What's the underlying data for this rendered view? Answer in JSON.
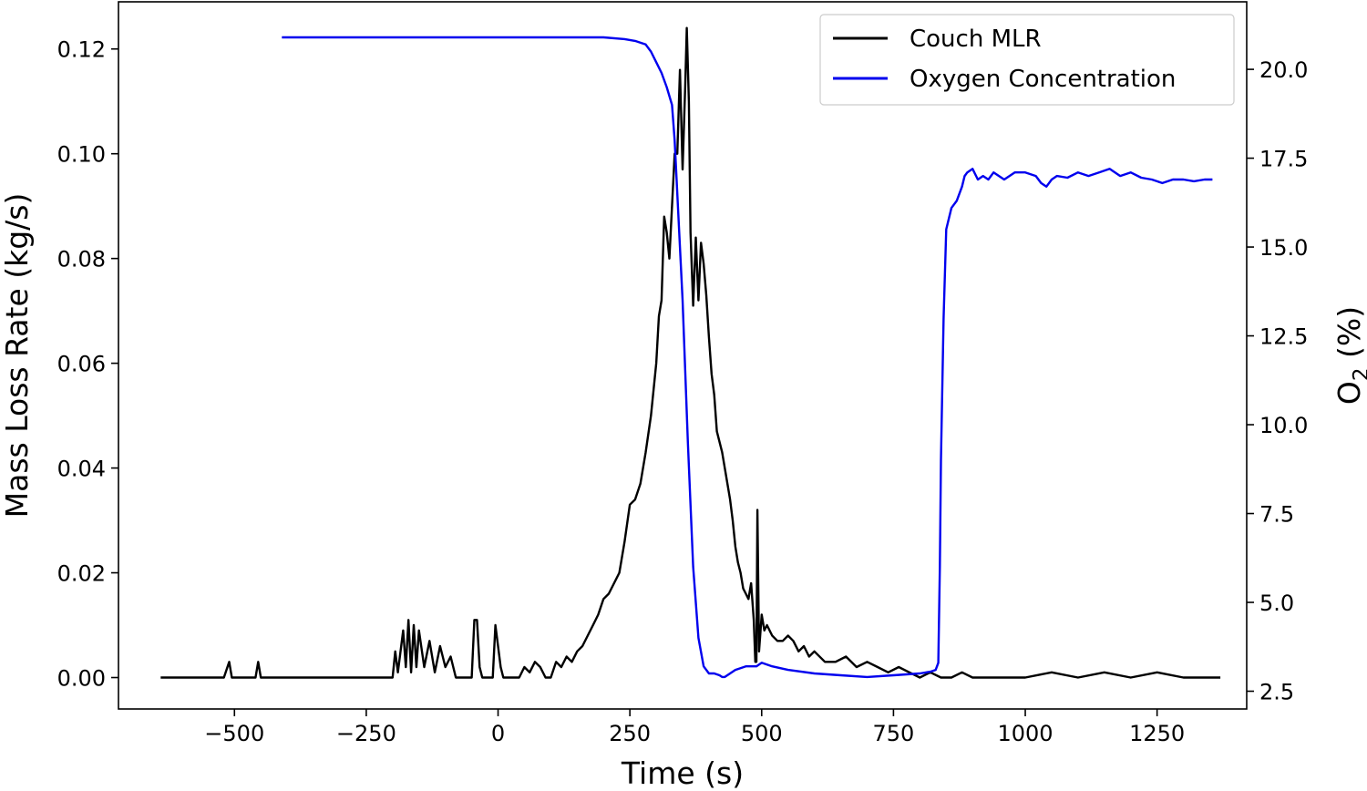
{
  "chart_data": {
    "type": "line",
    "title": "",
    "xlabel": "Time (s)",
    "ylabel_left": "Mass Loss Rate (kg/s)",
    "ylabel_right_main": "O",
    "ylabel_right_sub": "2",
    "ylabel_right_suffix": " (%)",
    "xlim": [
      -720,
      1420
    ],
    "ylim_left": [
      -0.006,
      0.129
    ],
    "ylim_right": [
      2.0,
      21.9
    ],
    "x_ticks": [
      -500,
      -250,
      0,
      250,
      500,
      750,
      1000,
      1250
    ],
    "x_tick_labels": [
      "−500",
      "−250",
      "0",
      "250",
      "500",
      "750",
      "1000",
      "1250"
    ],
    "y_left_ticks": [
      0.0,
      0.02,
      0.04,
      0.06,
      0.08,
      0.1,
      0.12
    ],
    "y_left_tick_labels": [
      "0.00",
      "0.02",
      "0.04",
      "0.06",
      "0.08",
      "0.10",
      "0.12"
    ],
    "y_right_ticks": [
      2.5,
      5.0,
      7.5,
      10.0,
      12.5,
      15.0,
      17.5,
      20.0
    ],
    "y_right_tick_labels": [
      "2.5",
      "5.0",
      "7.5",
      "10.0",
      "12.5",
      "15.0",
      "17.5",
      "20.0"
    ],
    "grid": false,
    "legend_position": "top-right",
    "series": [
      {
        "name": "Couch MLR",
        "axis": "left",
        "color": "#000000",
        "x": [
          -640,
          -520,
          -510,
          -505,
          -460,
          -455,
          -450,
          -200,
          -195,
          -190,
          -180,
          -175,
          -170,
          -165,
          -160,
          -155,
          -150,
          -140,
          -130,
          -120,
          -110,
          -100,
          -90,
          -80,
          -70,
          -50,
          -45,
          -40,
          -35,
          -30,
          -20,
          -10,
          -5,
          0,
          5,
          10,
          40,
          50,
          60,
          70,
          80,
          90,
          100,
          110,
          120,
          130,
          140,
          150,
          160,
          170,
          180,
          190,
          200,
          210,
          220,
          230,
          240,
          250,
          260,
          270,
          280,
          290,
          300,
          305,
          310,
          315,
          320,
          325,
          330,
          335,
          340,
          345,
          350,
          355,
          358,
          362,
          365,
          370,
          375,
          380,
          385,
          390,
          395,
          400,
          405,
          410,
          415,
          420,
          425,
          430,
          435,
          440,
          445,
          450,
          455,
          460,
          465,
          470,
          475,
          480,
          485,
          488,
          490,
          492,
          495,
          500,
          505,
          510,
          520,
          530,
          540,
          550,
          560,
          570,
          580,
          590,
          600,
          620,
          640,
          660,
          680,
          700,
          720,
          740,
          760,
          780,
          800,
          820,
          840,
          860,
          880,
          900,
          950,
          1000,
          1050,
          1100,
          1150,
          1200,
          1250,
          1300,
          1370
        ],
        "y": [
          0.0,
          0.0,
          0.003,
          0.0,
          0.0,
          0.003,
          0.0,
          0.0,
          0.005,
          0.001,
          0.009,
          0.002,
          0.011,
          0.001,
          0.01,
          0.002,
          0.009,
          0.002,
          0.007,
          0.001,
          0.006,
          0.002,
          0.004,
          0.0,
          0.0,
          0.0,
          0.011,
          0.011,
          0.002,
          0.0,
          0.0,
          0.0,
          0.01,
          0.006,
          0.002,
          0.0,
          0.0,
          0.002,
          0.001,
          0.003,
          0.002,
          0.0,
          0.0,
          0.003,
          0.002,
          0.004,
          0.003,
          0.005,
          0.006,
          0.008,
          0.01,
          0.012,
          0.015,
          0.016,
          0.018,
          0.02,
          0.026,
          0.033,
          0.034,
          0.037,
          0.043,
          0.05,
          0.06,
          0.069,
          0.072,
          0.088,
          0.085,
          0.08,
          0.09,
          0.1,
          0.1,
          0.116,
          0.097,
          0.113,
          0.124,
          0.11,
          0.085,
          0.071,
          0.084,
          0.072,
          0.083,
          0.079,
          0.073,
          0.065,
          0.058,
          0.054,
          0.047,
          0.045,
          0.043,
          0.04,
          0.037,
          0.034,
          0.03,
          0.025,
          0.022,
          0.02,
          0.017,
          0.016,
          0.015,
          0.018,
          0.011,
          0.003,
          0.003,
          0.032,
          0.005,
          0.012,
          0.009,
          0.01,
          0.008,
          0.007,
          0.007,
          0.008,
          0.007,
          0.005,
          0.006,
          0.004,
          0.005,
          0.003,
          0.003,
          0.004,
          0.002,
          0.003,
          0.002,
          0.001,
          0.002,
          0.001,
          0.0,
          0.001,
          0.0,
          0.0,
          0.001,
          0.0,
          0.0,
          0.0,
          0.001,
          0.0,
          0.001,
          0.0,
          0.001,
          0.0,
          0.0
        ]
      },
      {
        "name": "Oxygen Concentration",
        "axis": "right",
        "color": "#0000ee",
        "x": [
          -410,
          -300,
          -200,
          -100,
          0,
          100,
          200,
          240,
          260,
          280,
          290,
          300,
          310,
          320,
          330,
          335,
          340,
          345,
          350,
          355,
          360,
          370,
          380,
          390,
          400,
          410,
          420,
          425,
          430,
          440,
          450,
          470,
          480,
          490,
          500,
          520,
          550,
          600,
          650,
          700,
          750,
          800,
          820,
          830,
          835,
          838,
          840,
          845,
          850,
          860,
          870,
          880,
          885,
          890,
          900,
          910,
          920,
          930,
          940,
          960,
          980,
          1000,
          1020,
          1030,
          1040,
          1050,
          1060,
          1080,
          1100,
          1120,
          1140,
          1160,
          1180,
          1200,
          1220,
          1240,
          1260,
          1280,
          1300,
          1320,
          1340,
          1355
        ],
        "y": [
          20.9,
          20.9,
          20.9,
          20.9,
          20.9,
          20.9,
          20.9,
          20.85,
          20.8,
          20.7,
          20.5,
          20.2,
          19.9,
          19.5,
          19.0,
          18.0,
          16.5,
          15.0,
          13.5,
          11.5,
          9.5,
          6.0,
          4.0,
          3.2,
          3.0,
          3.0,
          2.95,
          2.9,
          2.9,
          3.0,
          3.1,
          3.2,
          3.2,
          3.2,
          3.3,
          3.2,
          3.1,
          3.0,
          2.95,
          2.9,
          2.95,
          3.0,
          3.05,
          3.1,
          3.3,
          6.0,
          9.0,
          13.0,
          15.5,
          16.1,
          16.3,
          16.7,
          17.0,
          17.1,
          17.2,
          16.9,
          17.0,
          16.9,
          17.1,
          16.9,
          17.1,
          17.1,
          17.0,
          16.8,
          16.7,
          16.9,
          17.0,
          16.95,
          17.1,
          17.0,
          17.1,
          17.2,
          17.0,
          17.1,
          16.95,
          16.9,
          16.8,
          16.9,
          16.9,
          16.85,
          16.9,
          16.9
        ]
      }
    ]
  }
}
